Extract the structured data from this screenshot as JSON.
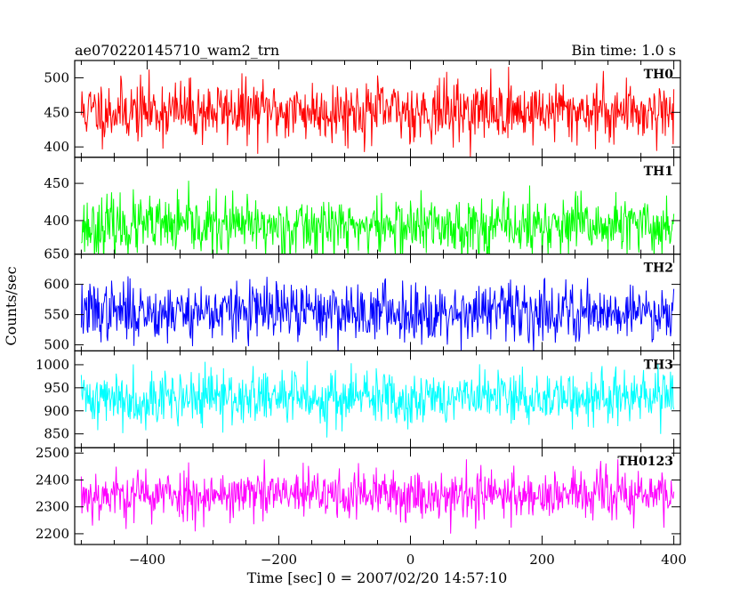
{
  "header": {
    "title": "ae070220145710_wam2_trn",
    "bin_time": "Bin time: 1.0 s"
  },
  "chart_data": {
    "type": "line",
    "xlabel": "Time [sec] 0 = 2007/02/20 14:57:10",
    "ylabel": "Counts/sec",
    "xlim": [
      -510,
      410
    ],
    "x_ticks": [
      -400,
      -200,
      0,
      200,
      400
    ],
    "x_tick_labels": [
      "−400",
      "−200",
      "0",
      "200",
      "400"
    ],
    "x_range": [
      -500,
      400
    ],
    "bin_time_s": 1.0,
    "panels": [
      {
        "name": "TH0",
        "color": "#ff0000",
        "ylim": [
          385,
          525
        ],
        "yticks": [
          400,
          450,
          500
        ],
        "ytick_labels": [
          "400",
          "450",
          "500"
        ],
        "mean": 452,
        "spread": 22,
        "seed": 11
      },
      {
        "name": "TH1",
        "color": "#00ff00",
        "ylim": [
          355,
          485
        ],
        "yticks": [
          400,
          450
        ],
        "ytick_labels": [
          "400",
          "450"
        ],
        "mean": 392,
        "spread": 20,
        "seed": 23
      },
      {
        "name": "TH2",
        "color": "#0000ff",
        "ylim": [
          490,
          650
        ],
        "yticks": [
          500,
          550,
          600,
          650
        ],
        "ytick_labels": [
          "500",
          "550",
          "600",
          "650"
        ],
        "mean": 555,
        "spread": 24,
        "seed": 37
      },
      {
        "name": "TH3",
        "color": "#00ffff",
        "ylim": [
          820,
          1030
        ],
        "yticks": [
          850,
          900,
          950,
          1000
        ],
        "ytick_labels": [
          "850",
          "900",
          "950",
          "1000"
        ],
        "mean": 928,
        "spread": 30,
        "seed": 41
      },
      {
        "name": "TH0123",
        "color": "#ff00ff",
        "ylim": [
          2160,
          2520
        ],
        "yticks": [
          2200,
          2300,
          2400,
          2500
        ],
        "ytick_labels": [
          "2200",
          "2300",
          "2400",
          "2500"
        ],
        "mean": 2345,
        "spread": 48,
        "seed": 53
      }
    ]
  }
}
